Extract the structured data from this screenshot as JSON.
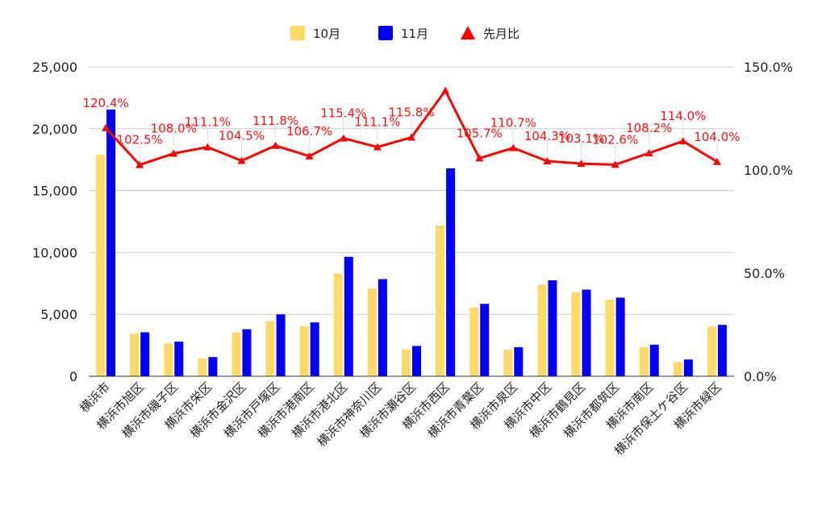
{
  "chart_data": {
    "type": "bar",
    "categories": [
      "横浜市",
      "横浜市旭区",
      "横浜市磯子区",
      "横浜市栄区",
      "横浜市金沢区",
      "横浜市戸塚区",
      "横浜市港南区",
      "横浜市港北区",
      "横浜市神奈川区",
      "横浜市瀬谷区",
      "横浜市西区",
      "横浜市青葉区",
      "横浜市泉区",
      "横浜市中区",
      "横浜市鶴見区",
      "横浜市都筑区",
      "横浜市南区",
      "横浜市保土ケ谷区",
      "横浜市緑区"
    ],
    "series": [
      {
        "name": "10月",
        "type": "bar",
        "axis": "left",
        "color": "#ffd966",
        "values": [
          17900,
          3450,
          2650,
          1450,
          3550,
          4450,
          4050,
          8300,
          7100,
          2150,
          12200,
          5550,
          2150,
          7400,
          6800,
          6200,
          2350,
          1150,
          4000
        ]
      },
      {
        "name": "11月",
        "type": "bar",
        "axis": "left",
        "color": "#0000ff",
        "values": [
          21550,
          3550,
          2800,
          1550,
          3800,
          5000,
          4350,
          9650,
          7850,
          2450,
          16800,
          5850,
          2350,
          7750,
          7000,
          6350,
          2550,
          1350,
          4150
        ]
      },
      {
        "name": "先月比",
        "type": "line",
        "axis": "right",
        "color": "#ff0000",
        "marker": "triangle",
        "values": [
          120.4,
          102.5,
          108.0,
          111.1,
          104.5,
          111.8,
          106.7,
          115.4,
          111.1,
          115.8,
          138.5,
          105.7,
          110.7,
          104.3,
          103.1,
          102.6,
          108.2,
          114.0,
          104.0
        ],
        "labels": [
          "120.4%",
          "102.5%",
          "108.0%",
          "111.1%",
          "104.5%",
          "111.8%",
          "106.7%",
          "115.4%",
          "111.1%",
          "115.8%",
          "",
          "105.7%",
          "110.7%",
          "104.3%",
          "103.1%",
          "102.6%",
          "108.2%",
          "114.0%",
          "104.0%"
        ]
      }
    ],
    "yleft": {
      "ticks": [
        0,
        5000,
        10000,
        15000,
        20000,
        25000
      ],
      "tick_labels": [
        "0",
        "5,000",
        "10,000",
        "15,000",
        "20,000",
        "25,000"
      ],
      "ylim": [
        0,
        25000
      ]
    },
    "yright": {
      "ticks": [
        0,
        50,
        100,
        150
      ],
      "tick_labels": [
        "0.0%",
        "50.0%",
        "100.0%",
        "150.0%"
      ],
      "ylim": [
        0,
        150
      ]
    },
    "legend": {
      "position": "top",
      "entries": [
        "10月",
        "11月",
        "先月比"
      ]
    },
    "grid": true,
    "title": "",
    "xlabel": "",
    "ylabel": ""
  }
}
